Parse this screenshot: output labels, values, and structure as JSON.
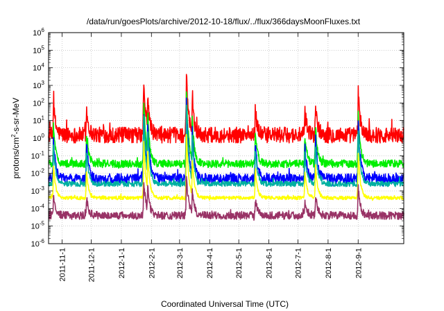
{
  "chart_data": {
    "type": "line",
    "title": "/data/run/goesPlots/archive/2012-10-18/flux/../flux/366daysMoonFluxes.txt",
    "xlabel": "Coordinated Universal Time (UTC)",
    "ylabel": {
      "base": "protons/cm",
      "sup": "2",
      "rest": "-s-sr-MeV"
    },
    "x_range": [
      "2011-10-18",
      "2012-10-18"
    ],
    "y_scale": "log",
    "ylim": [
      1e-06,
      1000000.0
    ],
    "grid": true,
    "legend": "none",
    "x_ticks": [
      {
        "date": "2011-11-01",
        "label": "2011-11-1"
      },
      {
        "date": "2011-12-01",
        "label": "2011-12-1"
      },
      {
        "date": "2012-01-01",
        "label": "2012-1-1"
      },
      {
        "date": "2012-02-01",
        "label": "2012-2-1"
      },
      {
        "date": "2012-03-01",
        "label": "2012-3-1"
      },
      {
        "date": "2012-04-01",
        "label": "2012-4-1"
      },
      {
        "date": "2012-05-01",
        "label": "2012-5-1"
      },
      {
        "date": "2012-06-01",
        "label": "2012-6-1"
      },
      {
        "date": "2012-07-01",
        "label": "2012-7-1"
      },
      {
        "date": "2012-08-01",
        "label": "2012-8-1"
      },
      {
        "date": "2012-09-01",
        "label": "2012-9-1"
      }
    ],
    "y_ticks": [
      {
        "exp": "-6",
        "value": 1e-06
      },
      {
        "exp": "-5",
        "value": 1e-05
      },
      {
        "exp": "-4",
        "value": 0.0001
      },
      {
        "exp": "-3",
        "value": 0.001
      },
      {
        "exp": "-2",
        "value": 0.01
      },
      {
        "exp": "-1",
        "value": 0.1
      },
      {
        "exp": "0",
        "value": 1
      },
      {
        "exp": "1",
        "value": 10.0
      },
      {
        "exp": "2",
        "value": 100.0
      },
      {
        "exp": "3",
        "value": 1000.0
      },
      {
        "exp": "4",
        "value": 10000.0
      },
      {
        "exp": "5",
        "value": 100000.0
      },
      {
        "exp": "6",
        "value": 1000000.0
      }
    ],
    "events": [
      {
        "date": "2011-10-23",
        "peak_factor": 60
      },
      {
        "date": "2011-11-26",
        "peak_factor": 35
      },
      {
        "date": "2012-01-24",
        "peak_factor": 1200
      },
      {
        "date": "2012-01-28",
        "peak_factor": 300
      },
      {
        "date": "2012-03-08",
        "peak_factor": 3000
      },
      {
        "date": "2012-03-14",
        "peak_factor": 120
      },
      {
        "date": "2012-05-18",
        "peak_factor": 35
      },
      {
        "date": "2012-07-08",
        "peak_factor": 25
      },
      {
        "date": "2012-07-19",
        "peak_factor": 60
      },
      {
        "date": "2012-09-01",
        "peak_factor": 300
      }
    ],
    "series": [
      {
        "color": "#ff0000",
        "baseline": 1.5,
        "noise_decades": 0.45,
        "response": 1.0
      },
      {
        "color": "#00ee00",
        "baseline": 0.035,
        "noise_decades": 0.22,
        "response": 1.25
      },
      {
        "color": "#0000ff",
        "baseline": 0.005,
        "noise_decades": 0.28,
        "response": 1.35
      },
      {
        "color": "#00b0a0",
        "baseline": 0.0025,
        "noise_decades": 0.15,
        "response": 1.3
      },
      {
        "color": "#ffff00",
        "baseline": 0.0004,
        "noise_decades": 0.1,
        "response": 1.1
      },
      {
        "color": "#993366",
        "baseline": 4e-05,
        "noise_decades": 0.22,
        "response": 0.7
      }
    ]
  }
}
